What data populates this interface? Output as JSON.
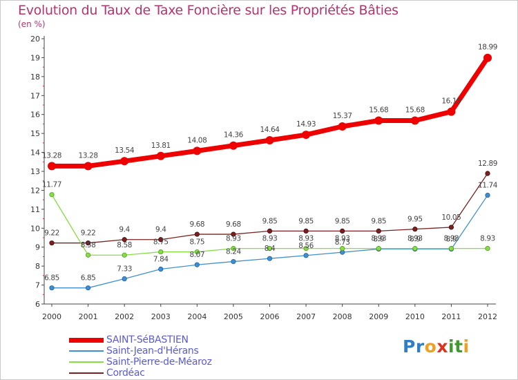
{
  "title": "Evolution du Taux de Taxe Foncière sur les Propriétés Bâties",
  "unit_label": "(en %)",
  "logo_text": "Proxiti",
  "colors": {
    "title": "#b5336e",
    "axis": "#444444",
    "legend_text": "#5a5ad6",
    "marker_axis": "#cc2255"
  },
  "chart_data": {
    "type": "line",
    "title": "Evolution du Taux de Taxe Foncière sur les Propriétés Bâties",
    "ylabel": "(en %)",
    "xlabel": "",
    "ylim": [
      6,
      20
    ],
    "yticks": [
      "6",
      "7",
      "8",
      "9",
      "10",
      "11",
      "12",
      "13",
      "14",
      "15",
      "16",
      "17",
      "18",
      "19",
      "20"
    ],
    "x": [
      "2000",
      "2001",
      "2002",
      "2003",
      "2004",
      "2005",
      "2006",
      "2007",
      "2008",
      "2009",
      "2010",
      "2011",
      "2012"
    ],
    "legend_position": "bottom-left",
    "series": [
      {
        "name": "SAINT-SéBASTIEN",
        "color": "#ee0000",
        "values": [
          13.28,
          13.28,
          13.54,
          13.81,
          14.08,
          14.36,
          14.64,
          14.93,
          15.37,
          15.68,
          15.68,
          16.15,
          18.99
        ],
        "labels": [
          "13.28",
          "13.28",
          "13.54",
          "13.81",
          "14.08",
          "14.36",
          "14.64",
          "14.93",
          "15.37",
          "15.68",
          "15.68",
          "16.15",
          "18.99"
        ]
      },
      {
        "name": "Saint-Jean-d'Hérans",
        "color": "#3f8fd0",
        "values": [
          6.85,
          6.85,
          7.33,
          7.84,
          8.07,
          8.24,
          8.4,
          8.56,
          8.73,
          8.9,
          8.9,
          8.9,
          11.74
        ],
        "labels": [
          "6.85",
          "6.85",
          "7.33",
          "7.84",
          "8.07",
          "8.24",
          "8.4",
          "8.56",
          "8.73",
          "8.9",
          "8.9",
          "8.9",
          "11.74"
        ]
      },
      {
        "name": "Saint-Pierre-de-Méaroz",
        "color": "#88dd44",
        "values": [
          11.77,
          8.58,
          8.58,
          8.75,
          8.75,
          8.93,
          8.93,
          8.93,
          8.93,
          8.93,
          8.93,
          8.93,
          8.93
        ],
        "labels": [
          "11.77",
          "8.58",
          "8.58",
          "8.75",
          "8.75",
          "8.93",
          "8.93",
          "8.93",
          "8.93",
          "8.93",
          "8.93",
          "8.93",
          "8.93"
        ]
      },
      {
        "name": "Cordéac",
        "color": "#7a2020",
        "values": [
          9.22,
          9.22,
          9.4,
          9.4,
          9.68,
          9.68,
          9.85,
          9.85,
          9.85,
          9.85,
          9.95,
          10.05,
          12.89
        ],
        "labels": [
          "9.22",
          "9.22",
          "9.4",
          "9.4",
          "9.68",
          "9.68",
          "9.85",
          "9.85",
          "9.85",
          "9.85",
          "9.95",
          "10.05",
          "12.89"
        ]
      }
    ]
  }
}
